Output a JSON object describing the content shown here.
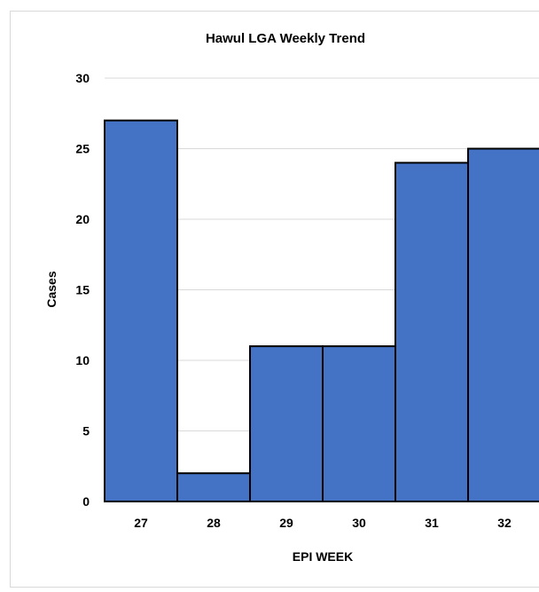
{
  "chart_data": {
    "type": "bar",
    "title": "Hawul LGA Weekly Trend",
    "xlabel": "EPI WEEK",
    "ylabel": "Cases",
    "categories": [
      "27",
      "28",
      "29",
      "30",
      "31",
      "32"
    ],
    "values": [
      27,
      2,
      11,
      11,
      24,
      25
    ],
    "ylim": [
      0,
      30
    ],
    "yticks": [
      0,
      5,
      10,
      15,
      20,
      25,
      30
    ],
    "grid": true,
    "legend": "none",
    "bar_color": "#4472c4",
    "bar_edge_color": "#000000"
  }
}
